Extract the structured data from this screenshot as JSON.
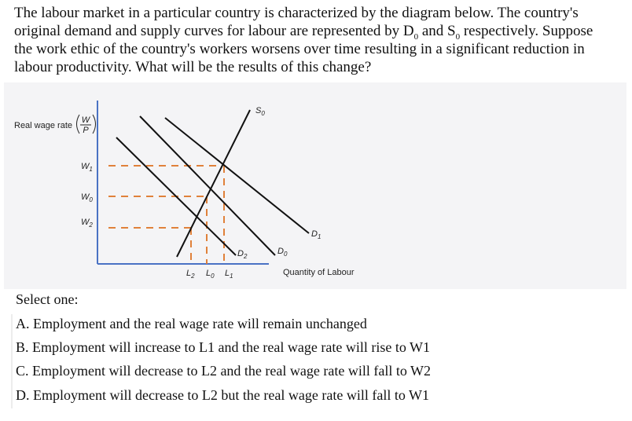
{
  "question": {
    "line1": "The labour market in a particular country is characterized by the diagram below. The country's",
    "line2_a": "original demand and supply curves for labour are represented by D",
    "line2_sub1": "0",
    "line2_b": " and S",
    "line2_sub2": "0",
    "line2_c": " respectively. Suppose",
    "line3": "the work ethic of the country's workers worsens over time resulting in a significant reduction in",
    "line4": "labour productivity. What will be the results of this change?"
  },
  "diagram": {
    "y_axis_label": "Real wage rate",
    "y_axis_fraction": {
      "numerator": "W",
      "denominator": "P"
    },
    "x_axis_label": "Quantity of Labour",
    "wages": [
      {
        "letter": "W",
        "sub": "1"
      },
      {
        "letter": "W",
        "sub": "0"
      },
      {
        "letter": "W",
        "sub": "2"
      }
    ],
    "quantities": [
      {
        "letter": "L",
        "sub": "2"
      },
      {
        "letter": "L",
        "sub": "0"
      },
      {
        "letter": "L",
        "sub": "1"
      }
    ],
    "curves": [
      {
        "letter": "S",
        "sub": "0"
      },
      {
        "letter": "D",
        "sub": "0"
      },
      {
        "letter": "D",
        "sub": "1"
      },
      {
        "letter": "D",
        "sub": "2"
      }
    ]
  },
  "answers": {
    "prompt": "Select one:",
    "options": [
      "A. Employment and the real wage rate will remain unchanged",
      "B. Employment will increase to L1 and the real wage rate will rise to W1",
      "C. Employment will decrease to L2 and the real wage rate will fall to W2",
      "D. Employment will decrease to L2 but the real wage rate will fall to W1"
    ]
  }
}
